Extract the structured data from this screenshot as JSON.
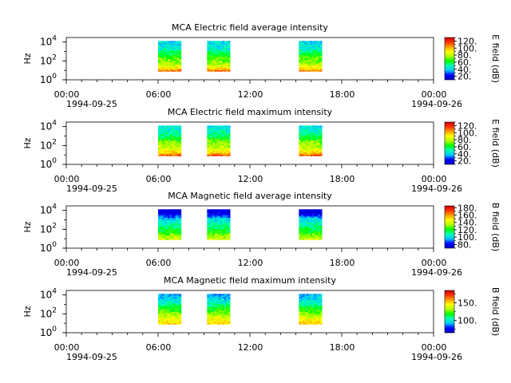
{
  "colormap_stops": [
    "#0000c8",
    "#0000ff",
    "#00c8ff",
    "#00ffb4",
    "#00ff00",
    "#b4ff00",
    "#ffff00",
    "#ffa000",
    "#ff3200",
    "#c80000"
  ],
  "chart_data": [
    {
      "type": "heatmap",
      "title": "MCA  Electric field average intensity",
      "ylabel": "Hz",
      "colorbar_label": "E field (dB)",
      "colorbar_ticks": [
        "20.",
        "40.",
        "60.",
        "80.",
        "100.",
        "120."
      ],
      "colorbar_range": [
        10,
        130
      ],
      "yticks": [
        {
          "base": "10",
          "exp": "0",
          "value": 1
        },
        {
          "base": "10",
          "exp": "2",
          "value": 100
        },
        {
          "base": "10",
          "exp": "4",
          "value": 10000
        }
      ],
      "ylim": [
        1,
        30000
      ],
      "x_tick_labels": [
        "00:00",
        "06:00",
        "12:00",
        "18:00",
        "00:00"
      ],
      "x_ticks_hours": [
        0,
        6,
        12,
        18,
        24
      ],
      "x_start_date": "1994-09-25",
      "x_end_date": "1994-09-26",
      "xlim_hours": [
        0,
        24
      ],
      "data_intervals_hours": [
        [
          6.0,
          7.5
        ],
        [
          9.2,
          10.7
        ],
        [
          15.2,
          16.7
        ]
      ],
      "intensity_profile_low_to_high_freq": [
        115,
        95,
        85,
        75,
        72,
        70,
        62,
        55,
        48,
        45,
        42,
        40
      ]
    },
    {
      "type": "heatmap",
      "title": "MCA  Electric field maximum intensity",
      "ylabel": "Hz",
      "colorbar_label": "E field (dB)",
      "colorbar_ticks": [
        "20.",
        "40.",
        "60.",
        "80.",
        "100.",
        "120."
      ],
      "colorbar_range": [
        10,
        130
      ],
      "yticks": [
        {
          "base": "10",
          "exp": "0",
          "value": 1
        },
        {
          "base": "10",
          "exp": "2",
          "value": 100
        },
        {
          "base": "10",
          "exp": "4",
          "value": 10000
        }
      ],
      "ylim": [
        1,
        30000
      ],
      "x_tick_labels": [
        "00:00",
        "06:00",
        "12:00",
        "18:00",
        "00:00"
      ],
      "x_ticks_hours": [
        0,
        6,
        12,
        18,
        24
      ],
      "x_start_date": "1994-09-25",
      "x_end_date": "1994-09-26",
      "xlim_hours": [
        0,
        24
      ],
      "data_intervals_hours": [
        [
          6.0,
          7.5
        ],
        [
          9.2,
          10.7
        ],
        [
          15.2,
          16.7
        ]
      ],
      "intensity_profile_low_to_high_freq": [
        118,
        100,
        90,
        80,
        76,
        74,
        66,
        58,
        52,
        48,
        45,
        42
      ]
    },
    {
      "type": "heatmap",
      "title": "MCA  Magnetic field average intensity",
      "ylabel": "Hz",
      "colorbar_label": "B field (dB)",
      "colorbar_ticks": [
        "80.",
        "100.",
        "120.",
        "140.",
        "160.",
        "180."
      ],
      "colorbar_range": [
        70,
        185
      ],
      "yticks": [
        {
          "base": "10",
          "exp": "0",
          "value": 1
        },
        {
          "base": "10",
          "exp": "2",
          "value": 100
        },
        {
          "base": "10",
          "exp": "4",
          "value": 10000
        }
      ],
      "ylim": [
        1,
        30000
      ],
      "x_tick_labels": [
        "00:00",
        "06:00",
        "12:00",
        "18:00",
        "00:00"
      ],
      "x_ticks_hours": [
        0,
        6,
        12,
        18,
        24
      ],
      "x_start_date": "1994-09-25",
      "x_end_date": "1994-09-26",
      "xlim_hours": [
        0,
        24
      ],
      "data_intervals_hours": [
        [
          6.0,
          7.5
        ],
        [
          9.2,
          10.7
        ],
        [
          15.2,
          16.7
        ]
      ],
      "intensity_profile_low_to_high_freq": [
        140,
        135,
        128,
        120,
        115,
        112,
        108,
        102,
        95,
        82,
        76,
        74
      ]
    },
    {
      "type": "heatmap",
      "title": "MCA  Magnetic field maximum intensity",
      "ylabel": "Hz",
      "colorbar_label": "B field (dB)",
      "colorbar_ticks": [
        "100.",
        "150."
      ],
      "colorbar_range": [
        65,
        185
      ],
      "yticks": [
        {
          "base": "10",
          "exp": "0",
          "value": 1
        },
        {
          "base": "10",
          "exp": "2",
          "value": 100
        },
        {
          "base": "10",
          "exp": "4",
          "value": 10000
        }
      ],
      "ylim": [
        1,
        30000
      ],
      "x_tick_labels": [
        "00:00",
        "06:00",
        "12:00",
        "18:00",
        "00:00"
      ],
      "x_ticks_hours": [
        0,
        6,
        12,
        18,
        24
      ],
      "x_start_date": "1994-09-25",
      "x_end_date": "1994-09-26",
      "xlim_hours": [
        0,
        24
      ],
      "data_intervals_hours": [
        [
          6.0,
          7.5
        ],
        [
          9.2,
          10.7
        ],
        [
          15.2,
          16.7
        ]
      ],
      "intensity_profile_low_to_high_freq": [
        150,
        148,
        142,
        135,
        128,
        122,
        118,
        110,
        102,
        96,
        92,
        90
      ]
    }
  ]
}
